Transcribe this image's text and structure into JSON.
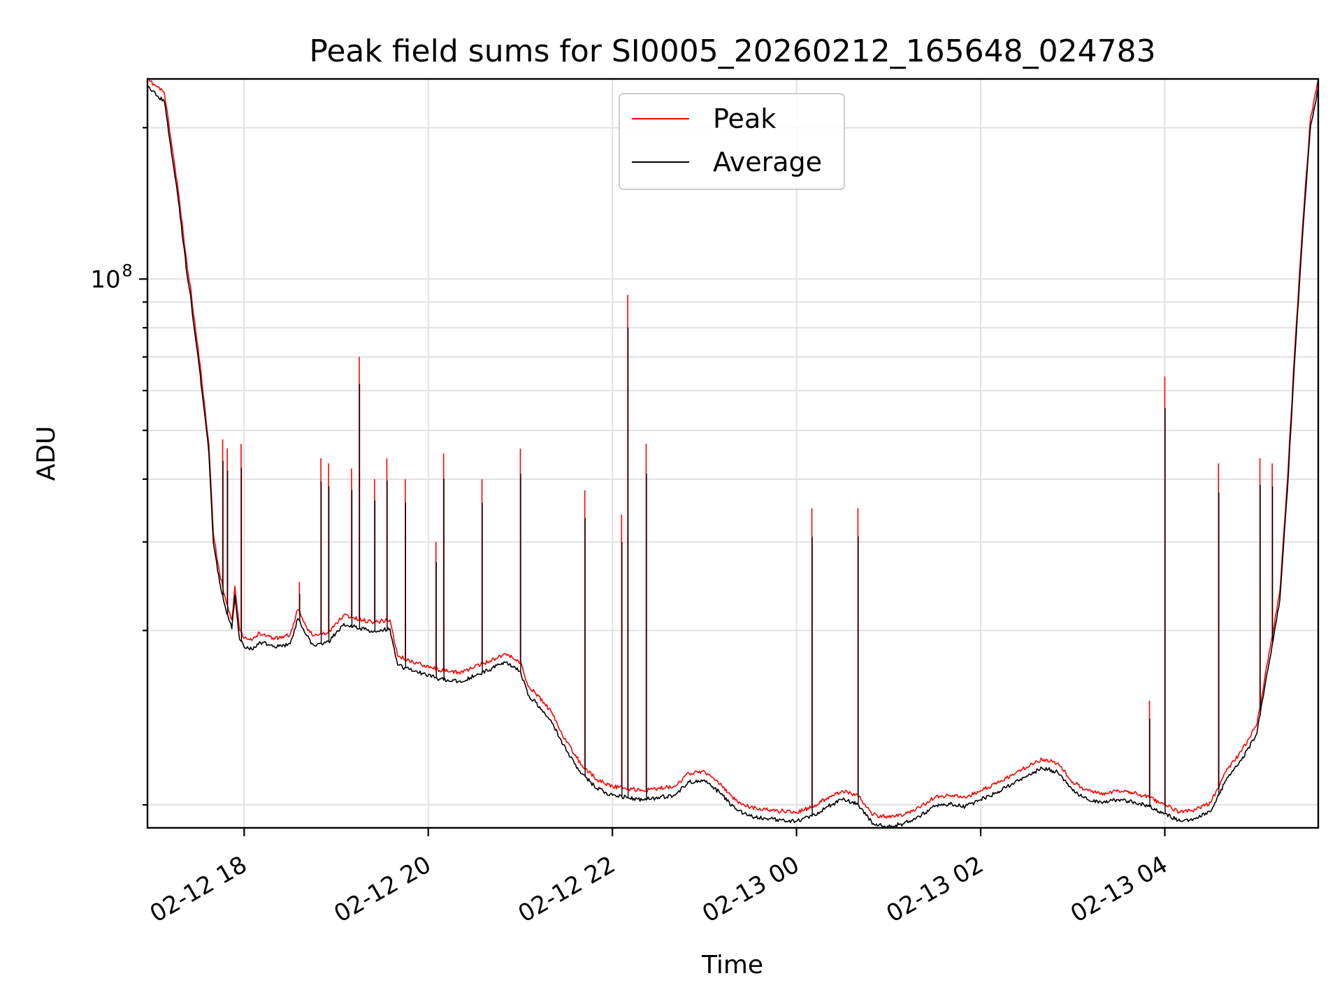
{
  "chart_data": {
    "type": "line",
    "title": "Peak field sums for SI0005_20260212_165648_024783",
    "xlabel": "Time",
    "ylabel": "ADU",
    "yscale": "log",
    "x_range": [
      "2026-02-12 16:57",
      "2026-02-13 05:40"
    ],
    "ylim": [
      8100000.0,
      250000000.0
    ],
    "x_ticks": [
      {
        "x": "2026-02-12 18:00",
        "label": "02-12 18"
      },
      {
        "x": "2026-02-12 20:00",
        "label": "02-12 20"
      },
      {
        "x": "2026-02-12 22:00",
        "label": "02-12 22"
      },
      {
        "x": "2026-02-13 00:00",
        "label": "02-13 00"
      },
      {
        "x": "2026-02-13 02:00",
        "label": "02-13 02"
      },
      {
        "x": "2026-02-13 04:00",
        "label": "02-13 04"
      }
    ],
    "y_ticks": [
      {
        "value": 100000000,
        "base": "10",
        "exponent": "8"
      }
    ],
    "y_minor_ticks": [
      9000000,
      20000000,
      30000000,
      40000000,
      50000000,
      60000000,
      70000000,
      80000000,
      90000000,
      200000000
    ],
    "grid": true,
    "legend": {
      "position": "upper center"
    },
    "series": [
      {
        "name": "Peak",
        "color": "#ff0000",
        "points": [
          [
            "2026-02-12 16:57",
            250000000
          ],
          [
            "2026-02-12 17:08",
            235000000
          ],
          [
            "2026-02-12 17:17",
            150000000
          ],
          [
            "2026-02-12 17:23",
            105000000
          ],
          [
            "2026-02-12 17:25",
            97000000
          ],
          [
            "2026-02-12 17:27",
            85000000
          ],
          [
            "2026-02-12 17:30",
            73000000
          ],
          [
            "2026-02-12 17:34",
            57000000
          ],
          [
            "2026-02-12 17:37",
            47000000
          ],
          [
            "2026-02-12 17:38",
            41000000
          ],
          [
            "2026-02-12 17:40",
            31000000
          ],
          [
            "2026-02-12 17:44",
            26000000
          ],
          [
            "2026-02-12 17:48",
            23000000
          ],
          [
            "2026-02-12 17:52",
            21000000
          ],
          [
            "2026-02-12 17:54",
            24500000
          ],
          [
            "2026-02-12 17:57",
            20000000
          ],
          [
            "2026-02-12 18:00",
            19300000
          ],
          [
            "2026-02-12 18:05",
            19100000
          ],
          [
            "2026-02-12 18:10",
            19800000
          ],
          [
            "2026-02-12 18:20",
            19300000
          ],
          [
            "2026-02-12 18:30",
            19600000
          ],
          [
            "2026-02-12 18:35",
            22000000
          ],
          [
            "2026-02-12 18:40",
            20500000
          ],
          [
            "2026-02-12 18:45",
            19500000
          ],
          [
            "2026-02-12 18:55",
            19800000
          ],
          [
            "2026-02-12 19:05",
            21500000
          ],
          [
            "2026-02-12 19:15",
            21000000
          ],
          [
            "2026-02-12 19:25",
            20800000
          ],
          [
            "2026-02-12 19:35",
            21000000
          ],
          [
            "2026-02-12 19:40",
            17800000
          ],
          [
            "2026-02-12 19:50",
            17300000
          ],
          [
            "2026-02-12 20:00",
            17000000
          ],
          [
            "2026-02-12 20:10",
            16600000
          ],
          [
            "2026-02-12 20:20",
            16500000
          ],
          [
            "2026-02-12 20:30",
            16900000
          ],
          [
            "2026-02-12 20:40",
            17400000
          ],
          [
            "2026-02-12 20:50",
            18000000
          ],
          [
            "2026-02-12 21:00",
            17300000
          ],
          [
            "2026-02-12 21:05",
            15500000
          ],
          [
            "2026-02-12 21:10",
            15000000
          ],
          [
            "2026-02-12 21:20",
            13800000
          ],
          [
            "2026-02-12 21:30",
            12000000
          ],
          [
            "2026-02-12 21:40",
            10800000
          ],
          [
            "2026-02-12 21:50",
            10100000
          ],
          [
            "2026-02-12 22:00",
            9800000
          ],
          [
            "2026-02-12 22:10",
            9700000
          ],
          [
            "2026-02-12 22:20",
            9600000
          ],
          [
            "2026-02-12 22:30",
            9700000
          ],
          [
            "2026-02-12 22:40",
            9800000
          ],
          [
            "2026-02-12 22:50",
            10400000
          ],
          [
            "2026-02-12 23:00",
            10500000
          ],
          [
            "2026-02-12 23:10",
            9900000
          ],
          [
            "2026-02-12 23:20",
            9200000
          ],
          [
            "2026-02-12 23:30",
            8900000
          ],
          [
            "2026-02-12 23:40",
            8800000
          ],
          [
            "2026-02-12 23:50",
            8750000
          ],
          [
            "2026-02-13 00:00",
            8700000
          ],
          [
            "2026-02-13 00:10",
            8900000
          ],
          [
            "2026-02-13 00:20",
            9300000
          ],
          [
            "2026-02-13 00:30",
            9600000
          ],
          [
            "2026-02-13 00:40",
            9400000
          ],
          [
            "2026-02-13 00:50",
            8600000
          ],
          [
            "2026-02-13 01:00",
            8500000
          ],
          [
            "2026-02-13 01:10",
            8600000
          ],
          [
            "2026-02-13 01:20",
            8900000
          ],
          [
            "2026-02-13 01:30",
            9300000
          ],
          [
            "2026-02-13 01:40",
            9400000
          ],
          [
            "2026-02-13 01:50",
            9300000
          ],
          [
            "2026-02-13 02:00",
            9600000
          ],
          [
            "2026-02-13 02:10",
            9900000
          ],
          [
            "2026-02-13 02:20",
            10300000
          ],
          [
            "2026-02-13 02:30",
            10700000
          ],
          [
            "2026-02-13 02:40",
            11100000
          ],
          [
            "2026-02-13 02:50",
            10900000
          ],
          [
            "2026-02-13 03:00",
            10000000
          ],
          [
            "2026-02-13 03:10",
            9600000
          ],
          [
            "2026-02-13 03:20",
            9500000
          ],
          [
            "2026-02-13 03:30",
            9600000
          ],
          [
            "2026-02-13 03:40",
            9500000
          ],
          [
            "2026-02-13 03:50",
            9300000
          ],
          [
            "2026-02-13 04:00",
            9000000
          ],
          [
            "2026-02-13 04:10",
            8700000
          ],
          [
            "2026-02-13 04:20",
            8800000
          ],
          [
            "2026-02-13 04:30",
            9100000
          ],
          [
            "2026-02-13 04:40",
            10500000
          ],
          [
            "2026-02-13 04:50",
            11500000
          ],
          [
            "2026-02-13 05:00",
            13000000
          ],
          [
            "2026-02-13 05:05",
            16000000
          ],
          [
            "2026-02-13 05:10",
            19500000
          ],
          [
            "2026-02-13 05:15",
            24000000
          ],
          [
            "2026-02-13 05:20",
            40000000
          ],
          [
            "2026-02-13 05:25",
            75000000
          ],
          [
            "2026-02-13 05:30",
            130000000
          ],
          [
            "2026-02-13 05:35",
            210000000
          ],
          [
            "2026-02-13 05:40",
            250000000
          ]
        ],
        "spikes": [
          [
            "2026-02-12 17:46",
            48000000
          ],
          [
            "2026-02-12 17:49",
            46000000
          ],
          [
            "2026-02-12 17:58",
            47000000
          ],
          [
            "2026-02-12 18:36",
            25000000
          ],
          [
            "2026-02-12 18:50",
            44000000
          ],
          [
            "2026-02-12 18:55",
            43000000
          ],
          [
            "2026-02-12 19:10",
            42000000
          ],
          [
            "2026-02-12 19:15",
            70000000
          ],
          [
            "2026-02-12 19:25",
            40000000
          ],
          [
            "2026-02-12 19:33",
            44000000
          ],
          [
            "2026-02-12 19:45",
            40000000
          ],
          [
            "2026-02-12 20:05",
            30000000
          ],
          [
            "2026-02-12 20:10",
            45000000
          ],
          [
            "2026-02-12 20:35",
            40000000
          ],
          [
            "2026-02-12 21:00",
            46000000
          ],
          [
            "2026-02-12 21:42",
            38000000
          ],
          [
            "2026-02-12 22:06",
            34000000
          ],
          [
            "2026-02-12 22:10",
            93000000
          ],
          [
            "2026-02-12 22:22",
            47000000
          ],
          [
            "2026-02-13 00:10",
            35000000
          ],
          [
            "2026-02-13 00:40",
            35000000
          ],
          [
            "2026-02-13 03:50",
            14500000
          ],
          [
            "2026-02-13 04:00",
            64000000
          ],
          [
            "2026-02-13 04:35",
            43000000
          ],
          [
            "2026-02-13 05:02",
            44000000
          ],
          [
            "2026-02-13 05:10",
            43000000
          ]
        ]
      },
      {
        "name": "Average",
        "color": "#000000",
        "offset_factor": 0.96,
        "spike_factor": 0.85
      }
    ]
  }
}
